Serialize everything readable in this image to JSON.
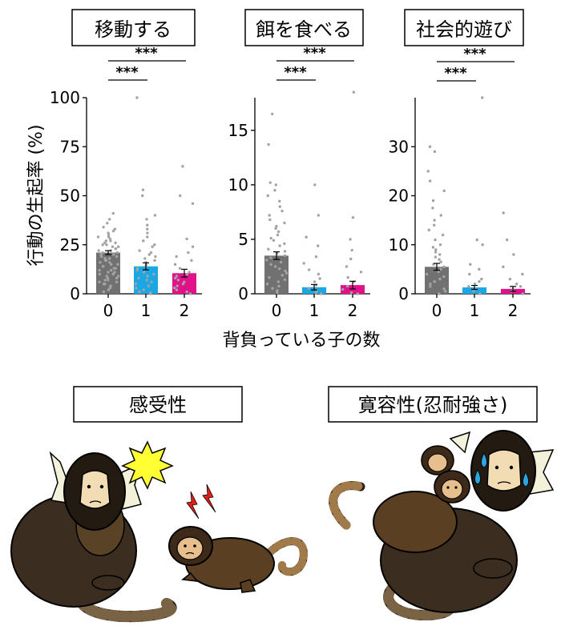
{
  "chart_data": [
    {
      "type": "bar",
      "title": "移動する",
      "ylabel": "行動の生起率 (%)",
      "ylim": [
        0,
        100
      ],
      "yticks": [
        0,
        25,
        50,
        75,
        100
      ],
      "categories": [
        "0",
        "1",
        "2"
      ],
      "values": [
        21,
        14,
        10.5
      ],
      "errors": [
        1.0,
        1.8,
        2.0
      ],
      "bar_colors": [
        "#717171",
        "#1aa7e4",
        "#e0118a"
      ],
      "points": [
        [
          41,
          38,
          36,
          34,
          33,
          32,
          31,
          30,
          29,
          29,
          28,
          27,
          27,
          26,
          26,
          25,
          25,
          24,
          24,
          23,
          23,
          22,
          22,
          21,
          21,
          20,
          20,
          19,
          19,
          18,
          18,
          17,
          17,
          16,
          16,
          15,
          15,
          14,
          14,
          13,
          13,
          12,
          12,
          11,
          11,
          10,
          10,
          9,
          9,
          8,
          8,
          7,
          7,
          6,
          6,
          5,
          5,
          4,
          3,
          2,
          1
        ],
        [
          100,
          53,
          50,
          40,
          38,
          35,
          33,
          31,
          29,
          27,
          25,
          24,
          22,
          21,
          20,
          19,
          18,
          17,
          16,
          15,
          14,
          13,
          12,
          11,
          10,
          9,
          8,
          7,
          6,
          5,
          4,
          3,
          2,
          1,
          0.5,
          0
        ],
        [
          65,
          50,
          46,
          28,
          24,
          21,
          19,
          17,
          15,
          13,
          11,
          10,
          9,
          8,
          7,
          6,
          5,
          4,
          3,
          2,
          1,
          0
        ]
      ],
      "significance": [
        {
          "from": "0",
          "to": "1",
          "label": "***"
        },
        {
          "from": "0",
          "to": "2",
          "label": "***"
        }
      ]
    },
    {
      "type": "bar",
      "title": "餌を食べる",
      "ylim": [
        0,
        18
      ],
      "yticks": [
        0,
        5,
        10,
        15
      ],
      "categories": [
        "0",
        "1",
        "2"
      ],
      "values": [
        3.5,
        0.6,
        0.8
      ],
      "errors": [
        0.35,
        0.25,
        0.35
      ],
      "bar_colors": [
        "#717171",
        "#1aa7e4",
        "#e0118a"
      ],
      "points": [
        [
          16.5,
          13.7,
          10.2,
          10,
          9.5,
          9,
          8.5,
          8,
          7.6,
          7.2,
          6.8,
          6.5,
          6.2,
          6,
          5.7,
          5.4,
          5.1,
          4.9,
          4.6,
          4.4,
          4.1,
          3.9,
          3.7,
          3.5,
          3.3,
          3.1,
          2.9,
          2.7,
          2.5,
          2.3,
          2.1,
          1.9,
          1.7,
          1.5,
          1.3,
          1.1,
          0.9,
          0.7,
          0.5,
          0.3,
          0.1
        ],
        [
          10,
          7.2,
          5.2,
          4.4,
          3.4,
          2.8,
          2.2,
          1.8,
          1.4,
          1.1,
          0.8,
          0.5,
          0.3,
          0.1,
          0
        ],
        [
          18.5,
          7,
          5,
          4,
          3.2,
          2.5,
          2,
          1.5,
          1.1,
          0.7,
          0.4,
          0.1,
          0
        ]
      ],
      "significance": [
        {
          "from": "0",
          "to": "1",
          "label": "***"
        },
        {
          "from": "0",
          "to": "2",
          "label": "***"
        }
      ]
    },
    {
      "type": "bar",
      "title": "社会的遊び",
      "ylim": [
        0,
        40
      ],
      "yticks": [
        0,
        10,
        20,
        30
      ],
      "categories": [
        "0",
        "1",
        "2"
      ],
      "values": [
        5.5,
        1.3,
        1.0
      ],
      "errors": [
        0.7,
        0.4,
        0.5
      ],
      "bar_colors": [
        "#717171",
        "#1aa7e4",
        "#e0118a"
      ],
      "points": [
        [
          30,
          29,
          25,
          23,
          21,
          19,
          17.5,
          16,
          15,
          14,
          13,
          12,
          11,
          10,
          9.5,
          9,
          8.5,
          8,
          7.5,
          7,
          6.5,
          6,
          5.5,
          5,
          4.5,
          4,
          3.5,
          3,
          2.5,
          2,
          1.5,
          1,
          0.5,
          0
        ],
        [
          40,
          11,
          10,
          6,
          5,
          4,
          3,
          2.5,
          2,
          1.5,
          1,
          0.5,
          0
        ],
        [
          16.5,
          11,
          8,
          5.5,
          4,
          3,
          2,
          1.5,
          1,
          0.5,
          0
        ]
      ],
      "significance": [
        {
          "from": "0",
          "to": "1",
          "label": "***"
        },
        {
          "from": "0",
          "to": "2",
          "label": "***"
        }
      ]
    }
  ],
  "xlabel": "背負っている子の数",
  "illustration": {
    "left_label": "感受性",
    "right_label": "寛容性(忍耐強さ)"
  },
  "colors": {
    "fur_dark": "#3b2d1f",
    "fur_mid": "#5a4227",
    "face": "#f2dcb4",
    "ear_tuft": "#f3f1d9",
    "flash": "#ffff33",
    "sweat": "#2aa6e0",
    "bolt": "#e61f19"
  }
}
